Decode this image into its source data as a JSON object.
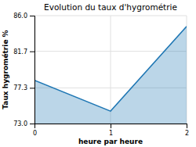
{
  "chart_data": {
    "type": "area",
    "title": "Evolution du taux d'hygrométrie",
    "x_label": "heure par heure",
    "y_label": "Taux hygrométrie %",
    "x": [
      0,
      1,
      2
    ],
    "values": [
      78.2,
      74.5,
      84.7
    ],
    "xlim": [
      0,
      2
    ],
    "ylim": [
      73.0,
      86.0
    ],
    "xticks": [
      0,
      1,
      2
    ],
    "yticks": [
      {
        "value": 73.0,
        "label": "73.0"
      },
      77.3,
      81.7,
      {
        "value": 86.0,
        "label": "86.0"
      }
    ],
    "grid": true
  }
}
